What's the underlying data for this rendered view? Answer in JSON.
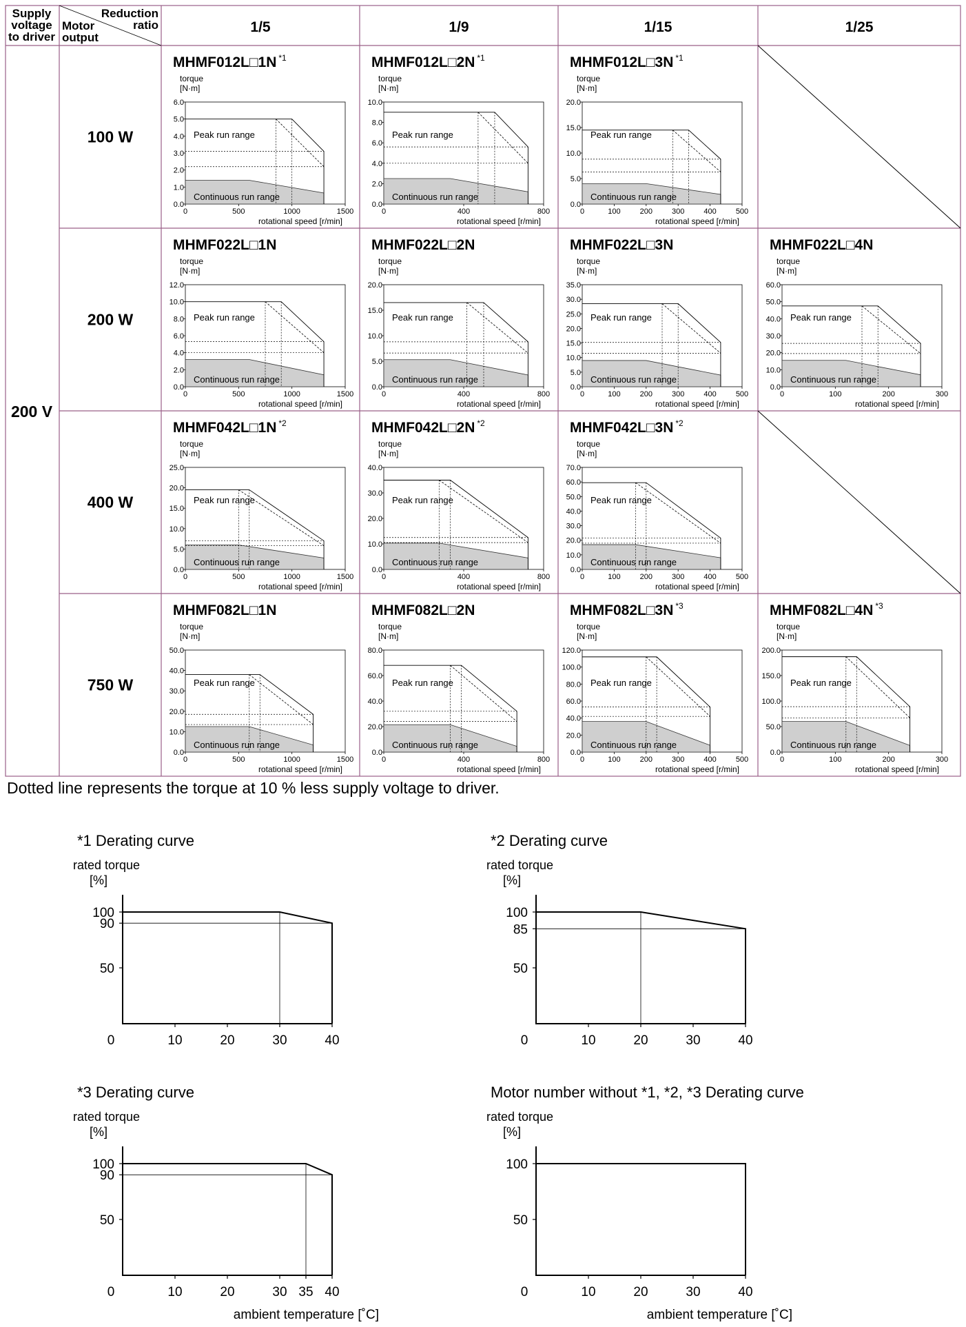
{
  "header": {
    "supply_label": [
      "Supply",
      "voltage",
      "to driver"
    ],
    "motor_label": [
      "Motor",
      "output"
    ],
    "reduction_label": [
      "Reduction",
      "ratio"
    ],
    "ratios": [
      "1/5",
      "1/9",
      "1/15",
      "1/25"
    ],
    "voltage": "200 V"
  },
  "outputs": [
    "100 W",
    "200 W",
    "400 W",
    "750 W"
  ],
  "chart_common": {
    "ylabel": [
      "torque",
      "[N·m]"
    ],
    "xlabel": "rotational speed [r/min]",
    "peak_label": "Peak run range",
    "cont_label": "Continuous run range"
  },
  "chart_data": [
    {
      "type": "area",
      "row": 0,
      "col": 0,
      "model": "MHMF012L□1N",
      "note": "*1",
      "xticks": [
        0,
        500,
        1000,
        1500
      ],
      "yticks": [
        "0.0",
        "1.0",
        "2.0",
        "3.0",
        "4.0",
        "5.0",
        "6.0"
      ],
      "xlim": [
        0,
        1500
      ],
      "ylim": [
        0,
        6
      ],
      "peak": {
        "torque": 5.0,
        "knee_speed": 1000,
        "max_speed": 1300,
        "end_torque": 3.1
      },
      "peak_reduced": {
        "torque": 5.0,
        "knee_speed": 850,
        "max_speed": 1300,
        "end_torque": 2.2
      },
      "continuous": {
        "torque": 1.4,
        "knee_speed": 600,
        "max_speed": 1300,
        "end_torque": 0.65
      }
    },
    {
      "type": "area",
      "row": 0,
      "col": 1,
      "model": "MHMF012L□2N",
      "note": "*1",
      "xticks": [
        0,
        400,
        800
      ],
      "yticks": [
        "0.0",
        "2.0",
        "4.0",
        "6.0",
        "8.0",
        "10.0"
      ],
      "xlim": [
        0,
        800
      ],
      "ylim": [
        0,
        10
      ],
      "peak": {
        "torque": 9.0,
        "knee_speed": 555,
        "max_speed": 722,
        "end_torque": 5.6
      },
      "peak_reduced": {
        "torque": 9.0,
        "knee_speed": 472,
        "max_speed": 722,
        "end_torque": 4.0
      },
      "continuous": {
        "torque": 2.5,
        "knee_speed": 333,
        "max_speed": 722,
        "end_torque": 1.2
      }
    },
    {
      "type": "area",
      "row": 0,
      "col": 2,
      "model": "MHMF012L□3N",
      "note": "*1",
      "xticks": [
        0,
        100,
        200,
        300,
        400,
        500
      ],
      "yticks": [
        "0.0",
        "5.0",
        "10.0",
        "15.0",
        "20.0"
      ],
      "xlim": [
        0,
        500
      ],
      "ylim": [
        0,
        20
      ],
      "peak": {
        "torque": 14.5,
        "knee_speed": 333,
        "max_speed": 433,
        "end_torque": 8.8
      },
      "peak_reduced": {
        "torque": 14.5,
        "knee_speed": 283,
        "max_speed": 433,
        "end_torque": 6.3
      },
      "continuous": {
        "torque": 4.0,
        "knee_speed": 200,
        "max_speed": 433,
        "end_torque": 1.9
      }
    },
    null,
    {
      "type": "area",
      "row": 1,
      "col": 0,
      "model": "MHMF022L□1N",
      "note": "",
      "xticks": [
        0,
        500,
        1000,
        1500
      ],
      "yticks": [
        "0.0",
        "2.0",
        "4.0",
        "6.0",
        "8.0",
        "10.0",
        "12.0"
      ],
      "xlim": [
        0,
        1500
      ],
      "ylim": [
        0,
        12
      ],
      "peak": {
        "torque": 10.0,
        "knee_speed": 900,
        "max_speed": 1300,
        "end_torque": 5.3
      },
      "peak_reduced": {
        "torque": 10.0,
        "knee_speed": 750,
        "max_speed": 1300,
        "end_torque": 4.0
      },
      "continuous": {
        "torque": 3.2,
        "knee_speed": 600,
        "max_speed": 1300,
        "end_torque": 1.4
      }
    },
    {
      "type": "area",
      "row": 1,
      "col": 1,
      "model": "MHMF022L□2N",
      "note": "",
      "xticks": [
        0,
        400,
        800
      ],
      "yticks": [
        "0.0",
        "5.0",
        "10.0",
        "15.0",
        "20.0"
      ],
      "xlim": [
        0,
        800
      ],
      "ylim": [
        0,
        20
      ],
      "peak": {
        "torque": 16.5,
        "knee_speed": 500,
        "max_speed": 722,
        "end_torque": 8.8
      },
      "peak_reduced": {
        "torque": 16.5,
        "knee_speed": 416,
        "max_speed": 722,
        "end_torque": 6.6
      },
      "continuous": {
        "torque": 5.3,
        "knee_speed": 333,
        "max_speed": 722,
        "end_torque": 2.3
      }
    },
    {
      "type": "area",
      "row": 1,
      "col": 2,
      "model": "MHMF022L□3N",
      "note": "",
      "xticks": [
        0,
        100,
        200,
        300,
        400,
        500
      ],
      "yticks": [
        "0.0",
        "5.0",
        "10.0",
        "15.0",
        "20.0",
        "25.0",
        "30.0",
        "35.0"
      ],
      "xlim": [
        0,
        500
      ],
      "ylim": [
        0,
        35
      ],
      "peak": {
        "torque": 28.5,
        "knee_speed": 300,
        "max_speed": 433,
        "end_torque": 15.2
      },
      "peak_reduced": {
        "torque": 28.5,
        "knee_speed": 250,
        "max_speed": 433,
        "end_torque": 11.5
      },
      "continuous": {
        "torque": 9.0,
        "knee_speed": 200,
        "max_speed": 433,
        "end_torque": 4.0
      }
    },
    {
      "type": "area",
      "row": 1,
      "col": 3,
      "model": "MHMF022L□4N",
      "note": "",
      "xticks": [
        0,
        100,
        200,
        300
      ],
      "yticks": [
        "0.0",
        "10.0",
        "20.0",
        "30.0",
        "40.0",
        "50.0",
        "60.0"
      ],
      "xlim": [
        0,
        300
      ],
      "ylim": [
        0,
        60
      ],
      "peak": {
        "torque": 47.5,
        "knee_speed": 180,
        "max_speed": 260,
        "end_torque": 25.5
      },
      "peak_reduced": {
        "torque": 47.5,
        "knee_speed": 150,
        "max_speed": 260,
        "end_torque": 19.5
      },
      "continuous": {
        "torque": 15.5,
        "knee_speed": 120,
        "max_speed": 260,
        "end_torque": 7.0
      }
    },
    {
      "type": "area",
      "row": 2,
      "col": 0,
      "model": "MHMF042L□1N",
      "note": "*2",
      "xticks": [
        0,
        500,
        1000,
        1500
      ],
      "yticks": [
        "0.0",
        "5.0",
        "10.0",
        "15.0",
        "20.0",
        "25.0"
      ],
      "xlim": [
        0,
        1500
      ],
      "ylim": [
        0,
        25
      ],
      "peak": {
        "torque": 19.5,
        "knee_speed": 600,
        "max_speed": 1300,
        "end_torque": 7.0
      },
      "peak_reduced": {
        "torque": 19.5,
        "knee_speed": 500,
        "max_speed": 1300,
        "end_torque": 5.8
      },
      "continuous": {
        "torque": 6.0,
        "knee_speed": 500,
        "max_speed": 1300,
        "end_torque": 2.8
      }
    },
    {
      "type": "area",
      "row": 2,
      "col": 1,
      "model": "MHMF042L□2N",
      "note": "*2",
      "xticks": [
        0,
        400,
        800
      ],
      "yticks": [
        "0.0",
        "10.0",
        "20.0",
        "30.0",
        "40.0"
      ],
      "xlim": [
        0,
        800
      ],
      "ylim": [
        0,
        40
      ],
      "peak": {
        "torque": 35.0,
        "knee_speed": 333,
        "max_speed": 722,
        "end_torque": 12.5
      },
      "peak_reduced": {
        "torque": 35.0,
        "knee_speed": 277,
        "max_speed": 722,
        "end_torque": 10.5
      },
      "continuous": {
        "torque": 10.3,
        "knee_speed": 277,
        "max_speed": 722,
        "end_torque": 4.5
      }
    },
    {
      "type": "area",
      "row": 2,
      "col": 2,
      "model": "MHMF042L□3N",
      "note": "*2",
      "xticks": [
        0,
        100,
        200,
        300,
        400,
        500
      ],
      "yticks": [
        "0.0",
        "10.0",
        "20.0",
        "30.0",
        "40.0",
        "50.0",
        "60.0",
        "70.0"
      ],
      "xlim": [
        0,
        500
      ],
      "ylim": [
        0,
        70
      ],
      "peak": {
        "torque": 59.5,
        "knee_speed": 200,
        "max_speed": 433,
        "end_torque": 21.5
      },
      "peak_reduced": {
        "torque": 59.5,
        "knee_speed": 167,
        "max_speed": 433,
        "end_torque": 18.0
      },
      "continuous": {
        "torque": 17.0,
        "knee_speed": 167,
        "max_speed": 433,
        "end_torque": 8.0
      }
    },
    null,
    {
      "type": "area",
      "row": 3,
      "col": 0,
      "model": "MHMF082L□1N",
      "note": "",
      "xticks": [
        0,
        500,
        1000,
        1500
      ],
      "yticks": [
        "0.0",
        "10.0",
        "20.0",
        "30.0",
        "40.0",
        "50.0"
      ],
      "xlim": [
        0,
        1500
      ],
      "ylim": [
        0,
        50
      ],
      "peak": {
        "torque": 38.0,
        "knee_speed": 700,
        "max_speed": 1200,
        "end_torque": 18.5
      },
      "peak_reduced": {
        "torque": 38.0,
        "knee_speed": 600,
        "max_speed": 1200,
        "end_torque": 13.5
      },
      "continuous": {
        "torque": 12.5,
        "knee_speed": 600,
        "max_speed": 1200,
        "end_torque": 3.5
      }
    },
    {
      "type": "area",
      "row": 3,
      "col": 1,
      "model": "MHMF082L□2N",
      "note": "",
      "xticks": [
        0,
        400,
        800
      ],
      "yticks": [
        "0.0",
        "20.0",
        "40.0",
        "60.0",
        "80.0"
      ],
      "xlim": [
        0,
        800
      ],
      "ylim": [
        0,
        80
      ],
      "peak": {
        "torque": 68.0,
        "knee_speed": 388,
        "max_speed": 666,
        "end_torque": 32.0
      },
      "peak_reduced": {
        "torque": 68.0,
        "knee_speed": 333,
        "max_speed": 666,
        "end_torque": 24.0
      },
      "continuous": {
        "torque": 21.5,
        "knee_speed": 333,
        "max_speed": 666,
        "end_torque": 4.5
      }
    },
    {
      "type": "area",
      "row": 3,
      "col": 2,
      "model": "MHMF082L□3N",
      "note": "*3",
      "xticks": [
        0,
        100,
        200,
        300,
        400,
        500
      ],
      "yticks": [
        "0.0",
        "20.0",
        "40.0",
        "60.0",
        "80.0",
        "100.0",
        "120.0"
      ],
      "xlim": [
        0,
        500
      ],
      "ylim": [
        0,
        120
      ],
      "peak": {
        "torque": 112.0,
        "knee_speed": 233,
        "max_speed": 400,
        "end_torque": 53.0
      },
      "peak_reduced": {
        "torque": 112.0,
        "knee_speed": 200,
        "max_speed": 400,
        "end_torque": 42.0
      },
      "continuous": {
        "torque": 36.0,
        "knee_speed": 200,
        "max_speed": 400,
        "end_torque": 8.0
      }
    },
    {
      "type": "area",
      "row": 3,
      "col": 3,
      "model": "MHMF082L□4N",
      "note": "*3",
      "xticks": [
        0,
        100,
        200,
        300
      ],
      "yticks": [
        "0.0",
        "50.0",
        "100.0",
        "150.0",
        "200.0"
      ],
      "xlim": [
        0,
        300
      ],
      "ylim": [
        0,
        200
      ],
      "peak": {
        "torque": 187.0,
        "knee_speed": 140,
        "max_speed": 240,
        "end_torque": 89.0
      },
      "peak_reduced": {
        "torque": 187.0,
        "knee_speed": 120,
        "max_speed": 240,
        "end_torque": 67.0
      },
      "continuous": {
        "torque": 60.0,
        "knee_speed": 120,
        "max_speed": 240,
        "end_torque": 13.0
      }
    }
  ],
  "note": "Dotted line represents the torque at 10 % less supply voltage to driver.",
  "derating": [
    {
      "type": "line",
      "title": "*1 Derating curve",
      "ylabel": [
        "rated torque",
        "[%]"
      ],
      "xlabel": "ambient temperature [˚C]",
      "points": [
        [
          0,
          100
        ],
        [
          30,
          100
        ],
        [
          40,
          90
        ]
      ],
      "yticks": [
        100,
        90,
        50
      ],
      "xticks": [
        0,
        10,
        20,
        30,
        40
      ],
      "guide_x": 30,
      "guide_y": 90
    },
    {
      "type": "line",
      "title": "*2 Derating curve",
      "ylabel": [
        "rated torque",
        "[%]"
      ],
      "xlabel": "ambient temperature [˚C]",
      "points": [
        [
          0,
          100
        ],
        [
          20,
          100
        ],
        [
          40,
          85
        ]
      ],
      "yticks": [
        100,
        85,
        50
      ],
      "xticks": [
        0,
        10,
        20,
        30,
        40
      ],
      "guide_x": 20,
      "guide_y": 85
    },
    {
      "type": "line",
      "title": "*3 Derating curve",
      "ylabel": [
        "rated torque",
        "[%]"
      ],
      "xlabel": "ambient temperature [˚C]",
      "points": [
        [
          0,
          100
        ],
        [
          35,
          100
        ],
        [
          40,
          90
        ]
      ],
      "yticks": [
        100,
        90,
        50
      ],
      "xticks": [
        0,
        10,
        20,
        30,
        35,
        40
      ],
      "guide_x": 35,
      "guide_y": 90
    },
    {
      "type": "line",
      "title": "Motor number without *1, *2, *3  Derating curve",
      "ylabel": [
        "rated torque",
        "[%]"
      ],
      "xlabel": "ambient temperature [˚C]",
      "points": [
        [
          0,
          100
        ],
        [
          40,
          100
        ]
      ],
      "yticks": [
        100,
        50
      ],
      "xticks": [
        0,
        10,
        20,
        30,
        40
      ],
      "guide_x": null,
      "guide_y": null
    }
  ]
}
